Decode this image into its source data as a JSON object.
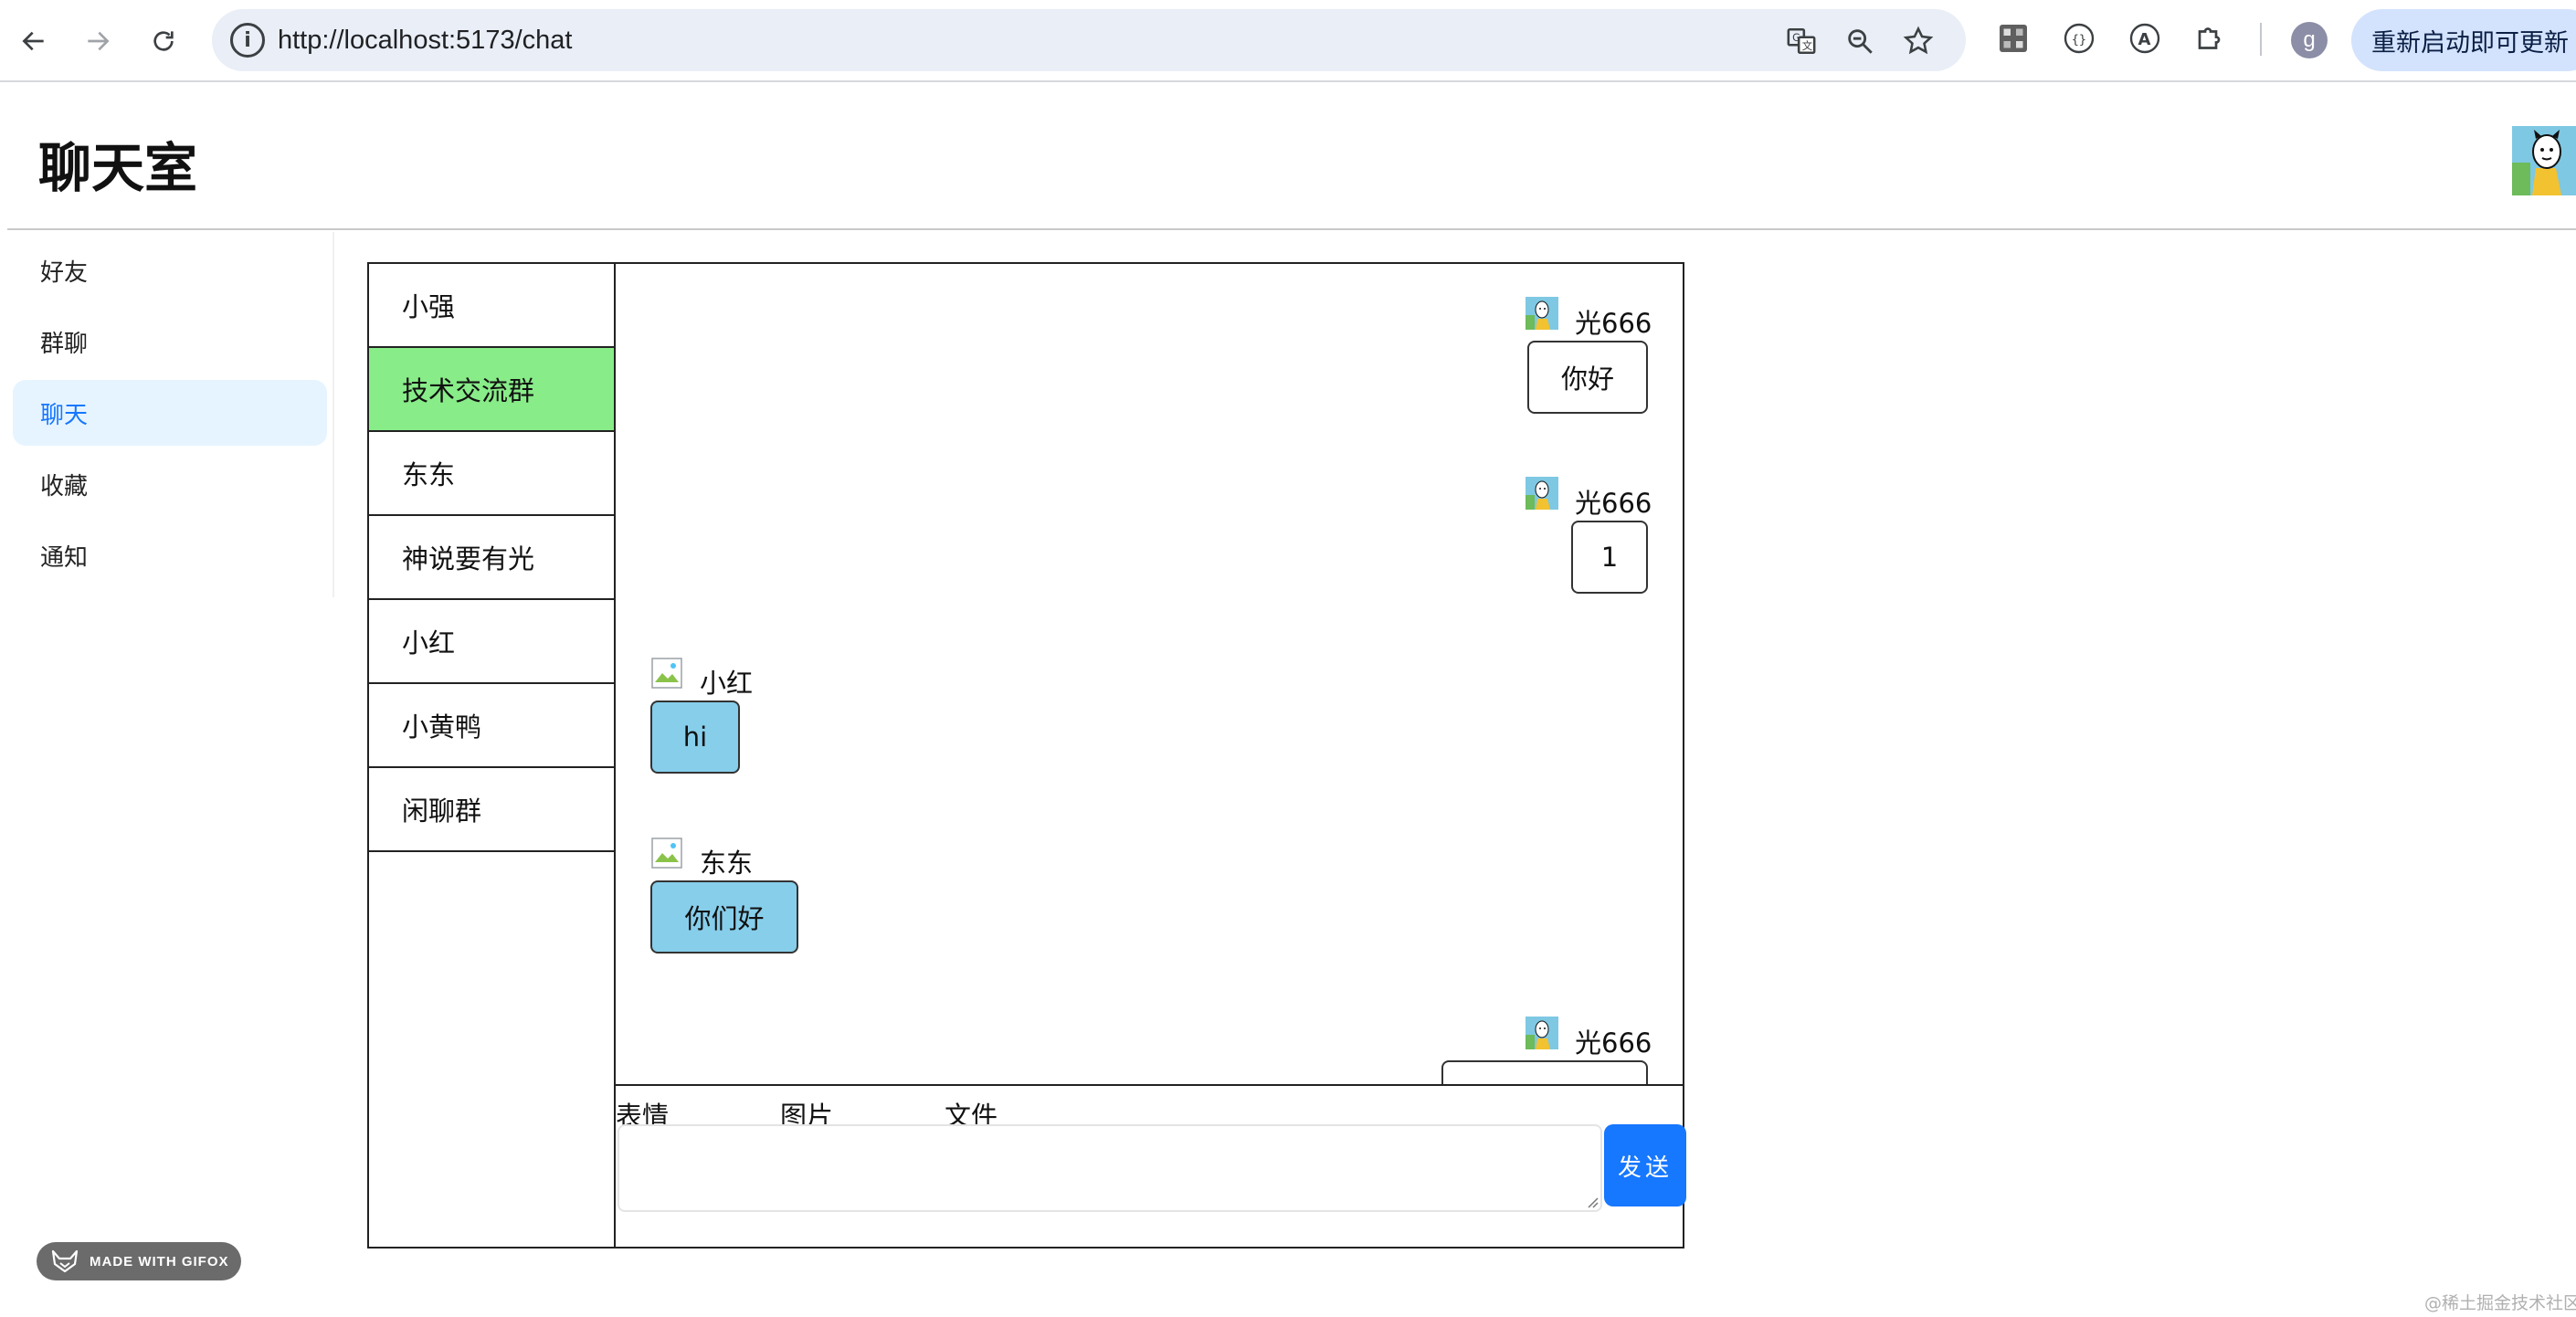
{
  "browser": {
    "url": "http://localhost:5173/chat",
    "profile_initial": "g",
    "update_label": "重新启动即可更新"
  },
  "app": {
    "title": "聊天室"
  },
  "menu": {
    "items": [
      {
        "label": "好友",
        "active": false
      },
      {
        "label": "群聊",
        "active": false
      },
      {
        "label": "聊天",
        "active": true
      },
      {
        "label": "收藏",
        "active": false
      },
      {
        "label": "通知",
        "active": false
      }
    ]
  },
  "contacts": [
    {
      "name": "小强",
      "active": false
    },
    {
      "name": "技术交流群",
      "active": true
    },
    {
      "name": "东东",
      "active": false
    },
    {
      "name": "神说要有光",
      "active": false
    },
    {
      "name": "小红",
      "active": false
    },
    {
      "name": "小黄鸭",
      "active": false
    },
    {
      "name": "闲聊群",
      "active": false
    }
  ],
  "messages": [
    {
      "sender": "光666",
      "text": "你好",
      "mine": true
    },
    {
      "sender": "光666",
      "text": "1",
      "mine": true
    },
    {
      "sender": "小红",
      "text": "hi",
      "mine": false
    },
    {
      "sender": "东东",
      "text": "你们好",
      "mine": false
    },
    {
      "sender": "光666",
      "text": "",
      "mine": true
    }
  ],
  "composer": {
    "tools": [
      "表情",
      "图片",
      "文件"
    ],
    "send_label": "发送",
    "input_value": ""
  },
  "overlays": {
    "gifox_badge": "MADE WITH GIFOX",
    "watermark": "@稀土掘金技术社区"
  },
  "colors": {
    "active_contact": "#88ec88",
    "other_bubble": "#87ceeb",
    "send_button": "#1677ff",
    "menu_active_bg": "#e6f4ff"
  }
}
